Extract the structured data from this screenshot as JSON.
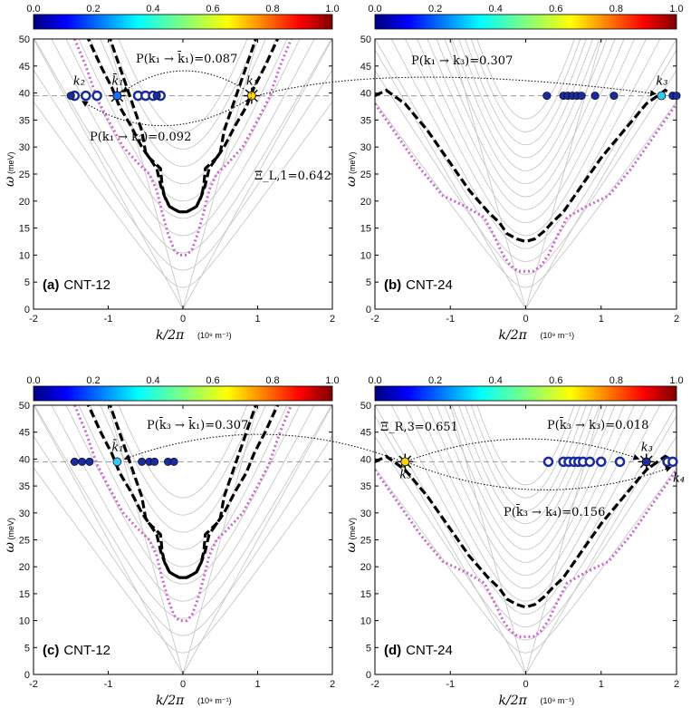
{
  "colorbar": {
    "ticks": [
      "0.0",
      "0.2",
      "0.4",
      "0.6",
      "0.8",
      "1.0"
    ]
  },
  "axes": {
    "xlabel": "k/2π",
    "xunit": "(10⁹ m⁻¹)",
    "ylabel": "ω",
    "yunit": "(meV)",
    "xticks": [
      "-2",
      "-1",
      "0",
      "1",
      "2"
    ],
    "yticks": [
      "0",
      "5",
      "10",
      "15",
      "20",
      "25",
      "30",
      "35",
      "40",
      "45",
      "50"
    ]
  },
  "chart_data": [
    {
      "type": "scatter",
      "panel": "a",
      "label_letter": "(a)",
      "label_name": "CNT-12",
      "xlim": [
        -2,
        2
      ],
      "ylim": [
        0,
        50
      ],
      "reference_line_y": 39.5,
      "open_markers_x": [
        -1.45,
        -1.3,
        -1.15,
        -0.6,
        -0.5,
        -0.4,
        -0.3
      ],
      "filled_markers_x": [
        -1.5,
        -0.35
      ],
      "incident": {
        "x": 0.92,
        "y": 39.5,
        "label": "k₁"
      },
      "transmitted": {
        "x": -0.88,
        "y": 39.5,
        "label": "k̄₁"
      },
      "reflected_label": {
        "x": -1.42,
        "text": "k₂"
      },
      "annotations": [
        {
          "text": "P(k₁ → k̄₁)=0.087"
        },
        {
          "text": "P(k₁ → k₂)=0.092"
        },
        {
          "text": "Ξ_L,1=0.642"
        }
      ]
    },
    {
      "type": "scatter",
      "panel": "b",
      "label_letter": "(b)",
      "label_name": "CNT-24",
      "xlim": [
        -2,
        2
      ],
      "ylim": [
        0,
        50
      ],
      "reference_line_y": 39.5,
      "filled_markers_x": [
        0.28,
        0.5,
        0.56,
        0.62,
        0.68,
        0.74,
        0.92,
        1.17,
        1.95,
        2.0
      ],
      "special": {
        "x": 1.8,
        "y": 39.5,
        "label": "k₃"
      },
      "annotations": [
        {
          "text": "P(k₁ → k₃)=0.307"
        }
      ]
    },
    {
      "type": "scatter",
      "panel": "c",
      "label_letter": "(c)",
      "label_name": "CNT-12",
      "xlim": [
        -2,
        2
      ],
      "ylim": [
        0,
        50
      ],
      "reference_line_y": 39.5,
      "filled_markers_x": [
        -1.45,
        -1.35,
        -1.25,
        -0.55,
        -0.45,
        -0.38,
        -0.2,
        -0.12
      ],
      "special": {
        "x": -0.88,
        "y": 39.5,
        "label": "k̄₁"
      },
      "annotations": [
        {
          "text": "P(k̄₃ → k̄₁)=0.307"
        }
      ]
    },
    {
      "type": "scatter",
      "panel": "d",
      "label_letter": "(d)",
      "label_name": "CNT-24",
      "xlim": [
        -2,
        2
      ],
      "ylim": [
        0,
        50
      ],
      "reference_line_y": 39.5,
      "open_markers_x": [
        0.3,
        0.5,
        0.57,
        0.64,
        0.7,
        0.76,
        0.85,
        1.0,
        1.25,
        1.88,
        1.95
      ],
      "incident": {
        "x": -1.6,
        "y": 39.5,
        "label": "k̄₃"
      },
      "transmitted": {
        "x": 1.6,
        "y": 39.5,
        "label": "k₃"
      },
      "reflected_label": {
        "x": 2.0,
        "text": "k₄"
      },
      "annotations": [
        {
          "text": "Ξ_R,3=0.651"
        },
        {
          "text": "P(k̄₃ → k₃)=0.018"
        },
        {
          "text": "P(k̄₃ → k₄)=0.156"
        }
      ]
    }
  ]
}
